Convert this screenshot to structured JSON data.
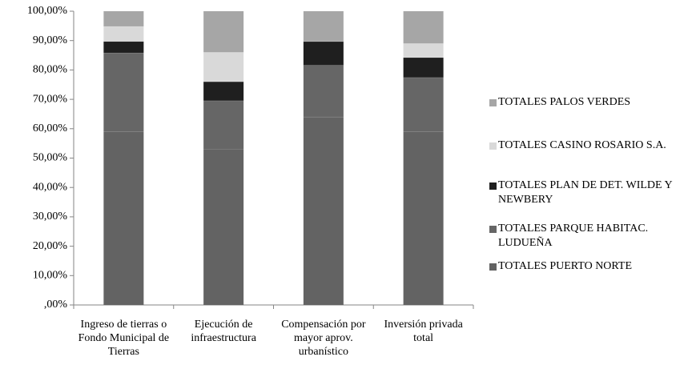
{
  "chart_data": {
    "type": "stacked_bar",
    "categories": [
      "Ingreso de tierras o Fondo Municipal de Tierras",
      "Ejecución de infraestructura",
      "Compensación por mayor aprov. urbanístico",
      "Inversión privada total"
    ],
    "series": [
      {
        "name": "TOTALES PUERTO NORTE",
        "color": "#636363",
        "values": [
          59,
          53,
          64,
          59
        ]
      },
      {
        "name": "TOTALES PARQUE HABITAC. LUDUEÑA",
        "color": "#666666",
        "values": [
          26.8,
          16.5,
          17.6,
          18.4
        ]
      },
      {
        "name": "TOTALES PLAN DE DET. WILDE Y NEWBERY",
        "color": "#1f1f1f",
        "values": [
          3.9,
          6.5,
          8.1,
          6.8
        ]
      },
      {
        "name": "TOTALES CASINO ROSARIO S.A.",
        "color": "#d9d9d9",
        "values": [
          5.1,
          10,
          0,
          4.8
        ]
      },
      {
        "name": "TOTALES PALOS VERDES",
        "color": "#a6a6a6",
        "values": [
          5.2,
          14,
          10.3,
          11
        ]
      }
    ],
    "ylim": [
      0,
      100
    ],
    "yticks": [
      {
        "value": 0,
        "label": ",00%"
      },
      {
        "value": 10,
        "label": "10,00%"
      },
      {
        "value": 20,
        "label": "20,00%"
      },
      {
        "value": 30,
        "label": "30,00%"
      },
      {
        "value": 40,
        "label": "40,00%"
      },
      {
        "value": 50,
        "label": "50,00%"
      },
      {
        "value": 60,
        "label": "60,00%"
      },
      {
        "value": 70,
        "label": "70,00%"
      },
      {
        "value": 80,
        "label": "80,00%"
      },
      {
        "value": 90,
        "label": "90,00%"
      },
      {
        "value": 100,
        "label": "100,00%"
      }
    ],
    "legend": "right"
  }
}
